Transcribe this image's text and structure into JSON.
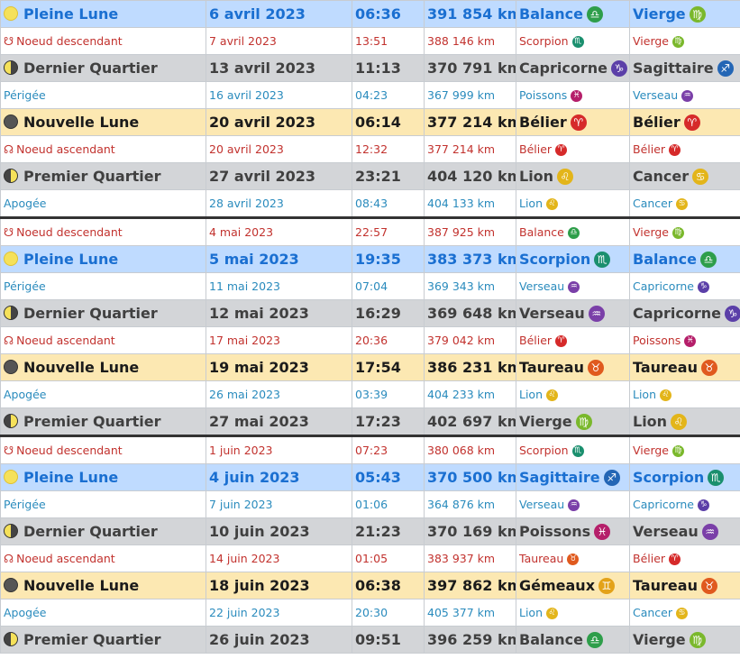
{
  "colors": {
    "full_moon_row_bg": "#bfdbff",
    "full_moon_text": "#1a6fd1",
    "new_moon_row_bg": "#fce8b2",
    "quarter_row_bg": "#d3d5d8",
    "node_text": "#c2322e",
    "apsis_text": "#2a8bbd",
    "fire": "#d62a2a",
    "earth": "#cc5c12",
    "air": "#c9a012",
    "water": "#8a2f8f",
    "air_sign": "#3a9f3a"
  },
  "zodiac": {
    "Bélier": {
      "symbol": "♈",
      "color": "#d62a2a"
    },
    "Taureau": {
      "symbol": "♉",
      "color": "#e05a1e"
    },
    "Gémeaux": {
      "symbol": "♊",
      "color": "#e3a21a"
    },
    "Cancer": {
      "symbol": "♋",
      "color": "#e3b51a"
    },
    "Lion": {
      "symbol": "♌",
      "color": "#e3b51a"
    },
    "Vierge": {
      "symbol": "♍",
      "color": "#7ab82c"
    },
    "Balance": {
      "symbol": "♎",
      "color": "#2e9e4a"
    },
    "Scorpion": {
      "symbol": "♏",
      "color": "#1a8f6e"
    },
    "Sagittaire": {
      "symbol": "♐",
      "color": "#2466b5"
    },
    "Capricorne": {
      "symbol": "♑",
      "color": "#5b3fa8"
    },
    "Verseau": {
      "symbol": "♒",
      "color": "#7a3fa8"
    },
    "Poissons": {
      "symbol": "♓",
      "color": "#b51f6a"
    }
  },
  "rows": [
    {
      "kind": "full",
      "event": "Pleine Lune",
      "date": "6 avril 2023",
      "time": "06:36",
      "distance": "391 854 km",
      "sign1": "Balance",
      "sign2": "Vierge"
    },
    {
      "kind": "desc",
      "event": "Noeud descendant",
      "date": "7 avril 2023",
      "time": "13:51",
      "distance": "388 146 km",
      "sign1": "Scorpion",
      "sign2": "Vierge"
    },
    {
      "kind": "last",
      "event": "Dernier Quartier",
      "date": "13 avril 2023",
      "time": "11:13",
      "distance": "370 791 km",
      "sign1": "Capricorne",
      "sign2": "Sagittaire"
    },
    {
      "kind": "peri",
      "event": "Périgée",
      "date": "16 avril 2023",
      "time": "04:23",
      "distance": "367 999 km",
      "sign1": "Poissons",
      "sign2": "Verseau"
    },
    {
      "kind": "new",
      "event": "Nouvelle Lune",
      "date": "20 avril 2023",
      "time": "06:14",
      "distance": "377 214 km",
      "sign1": "Bélier",
      "sign2": "Bélier"
    },
    {
      "kind": "asc",
      "event": "Noeud ascendant",
      "date": "20 avril 2023",
      "time": "12:32",
      "distance": "377 214 km",
      "sign1": "Bélier",
      "sign2": "Bélier"
    },
    {
      "kind": "first",
      "event": "Premier Quartier",
      "date": "27 avril 2023",
      "time": "23:21",
      "distance": "404 120 km",
      "sign1": "Lion",
      "sign2": "Cancer"
    },
    {
      "kind": "apo",
      "event": "Apogée",
      "date": "28 avril 2023",
      "time": "08:43",
      "distance": "404 133 km",
      "sign1": "Lion",
      "sign2": "Cancer"
    },
    {
      "kind": "desc",
      "sep": true,
      "event": "Noeud descendant",
      "date": "4 mai 2023",
      "time": "22:57",
      "distance": "387 925 km",
      "sign1": "Balance",
      "sign2": "Vierge"
    },
    {
      "kind": "full",
      "event": "Pleine Lune",
      "date": "5 mai 2023",
      "time": "19:35",
      "distance": "383 373 km",
      "sign1": "Scorpion",
      "sign2": "Balance"
    },
    {
      "kind": "peri",
      "event": "Périgée",
      "date": "11 mai 2023",
      "time": "07:04",
      "distance": "369 343 km",
      "sign1": "Verseau",
      "sign2": "Capricorne"
    },
    {
      "kind": "last",
      "event": "Dernier Quartier",
      "date": "12 mai 2023",
      "time": "16:29",
      "distance": "369 648 km",
      "sign1": "Verseau",
      "sign2": "Capricorne"
    },
    {
      "kind": "asc",
      "event": "Noeud ascendant",
      "date": "17 mai 2023",
      "time": "20:36",
      "distance": "379 042 km",
      "sign1": "Bélier",
      "sign2": "Poissons"
    },
    {
      "kind": "new",
      "event": "Nouvelle Lune",
      "date": "19 mai 2023",
      "time": "17:54",
      "distance": "386 231 km",
      "sign1": "Taureau",
      "sign2": "Taureau"
    },
    {
      "kind": "apo",
      "event": "Apogée",
      "date": "26 mai 2023",
      "time": "03:39",
      "distance": "404 233 km",
      "sign1": "Lion",
      "sign2": "Lion"
    },
    {
      "kind": "first",
      "event": "Premier Quartier",
      "date": "27 mai 2023",
      "time": "17:23",
      "distance": "402 697 km",
      "sign1": "Vierge",
      "sign2": "Lion"
    },
    {
      "kind": "desc",
      "sep": true,
      "event": "Noeud descendant",
      "date": "1 juin 2023",
      "time": "07:23",
      "distance": "380 068 km",
      "sign1": "Scorpion",
      "sign2": "Vierge"
    },
    {
      "kind": "full",
      "event": "Pleine Lune",
      "date": "4 juin 2023",
      "time": "05:43",
      "distance": "370 500 km",
      "sign1": "Sagittaire",
      "sign2": "Scorpion"
    },
    {
      "kind": "peri",
      "event": "Périgée",
      "date": "7 juin 2023",
      "time": "01:06",
      "distance": "364 876 km",
      "sign1": "Verseau",
      "sign2": "Capricorne"
    },
    {
      "kind": "last",
      "event": "Dernier Quartier",
      "date": "10 juin 2023",
      "time": "21:23",
      "distance": "370 169 km",
      "sign1": "Poissons",
      "sign2": "Verseau"
    },
    {
      "kind": "asc",
      "event": "Noeud ascendant",
      "date": "14 juin 2023",
      "time": "01:05",
      "distance": "383 937 km",
      "sign1": "Taureau",
      "sign2": "Bélier"
    },
    {
      "kind": "new",
      "event": "Nouvelle Lune",
      "date": "18 juin 2023",
      "time": "06:38",
      "distance": "397 862 km",
      "sign1": "Gémeaux",
      "sign2": "Taureau"
    },
    {
      "kind": "apo",
      "event": "Apogée",
      "date": "22 juin 2023",
      "time": "20:30",
      "distance": "405 377 km",
      "sign1": "Lion",
      "sign2": "Cancer"
    },
    {
      "kind": "first",
      "event": "Premier Quartier",
      "date": "26 juin 2023",
      "time": "09:51",
      "distance": "396 259 km",
      "sign1": "Balance",
      "sign2": "Vierge"
    }
  ]
}
